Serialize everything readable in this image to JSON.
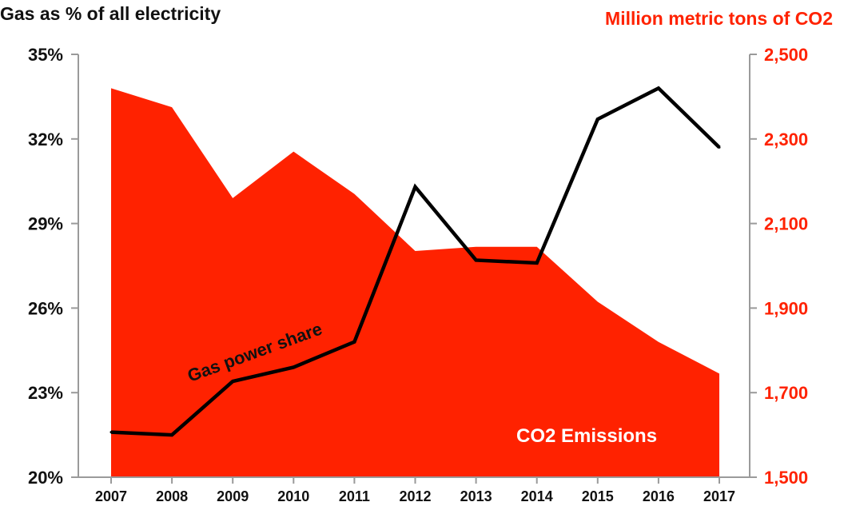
{
  "chart_data": {
    "type": "line",
    "left_axis_title": "Gas as % of all electricity",
    "right_axis_title": "Million metric tons of CO2",
    "categories": [
      "2007",
      "2008",
      "2009",
      "2010",
      "2011",
      "2012",
      "2013",
      "2014",
      "2015",
      "2016",
      "2017"
    ],
    "y_left": {
      "min": 20,
      "max": 35,
      "ticks": [
        "20%",
        "23%",
        "26%",
        "29%",
        "32%",
        "35%"
      ]
    },
    "y_right": {
      "min": 1500,
      "max": 2500,
      "ticks": [
        "1,500",
        "1,700",
        "1,900",
        "2,100",
        "2,300",
        "2,500"
      ]
    },
    "series": [
      {
        "name": "CO2 Emissions",
        "kind": "area",
        "axis": "right",
        "color": "#ff2200",
        "values": [
          2420,
          2375,
          2160,
          2270,
          2170,
          2035,
          2045,
          2045,
          1915,
          1820,
          1745
        ]
      },
      {
        "name": "Gas power share",
        "kind": "line",
        "axis": "left",
        "color": "#000000",
        "values": [
          21.6,
          21.5,
          23.4,
          23.9,
          24.8,
          30.3,
          27.7,
          27.6,
          32.7,
          33.8,
          31.7
        ]
      }
    ]
  }
}
